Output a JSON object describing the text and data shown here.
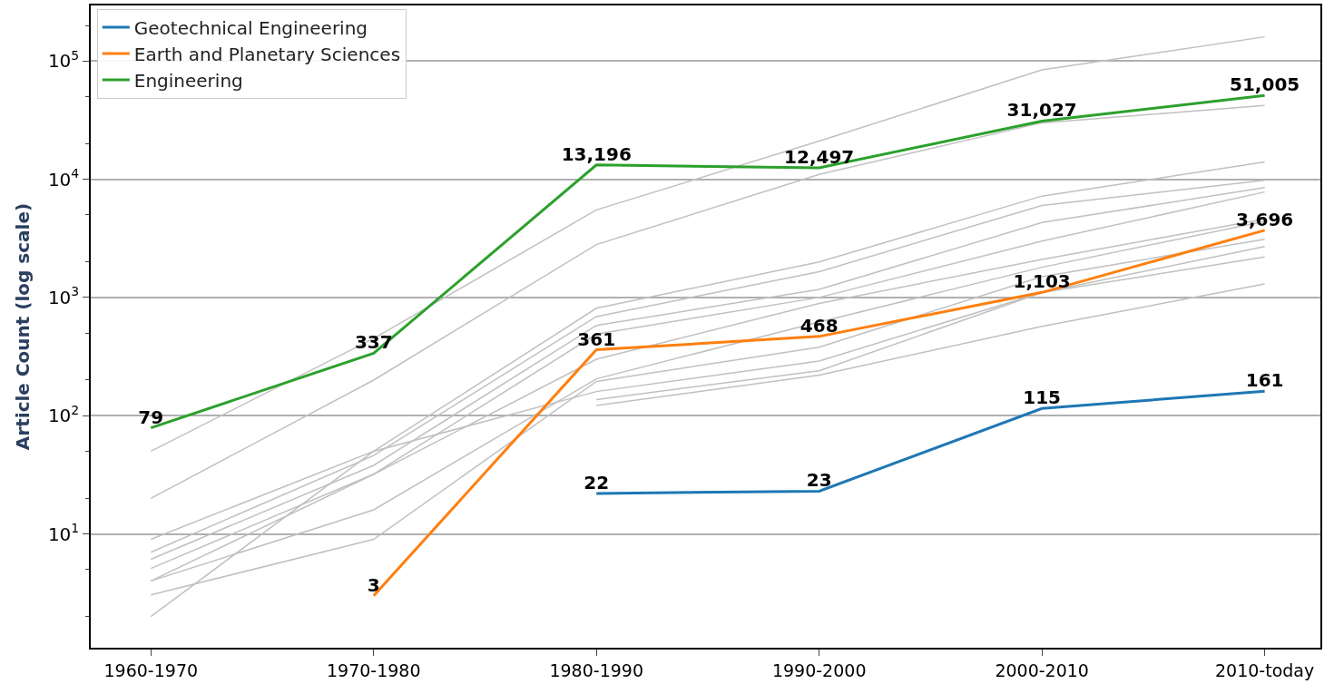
{
  "chart_data": {
    "type": "line",
    "ylabel": "Article Count (log scale)",
    "categories": [
      "1960-1970",
      "1970-1980",
      "1980-1990",
      "1990-2000",
      "2000-2010",
      "2010-today"
    ],
    "log": "y",
    "ylim": [
      1.09,
      295000
    ],
    "yticks": [
      {
        "value": 10,
        "label": "10$^{1}$"
      },
      {
        "value": 100,
        "label": "10$^{2}$"
      },
      {
        "value": 1000,
        "label": "10$^{3}$"
      },
      {
        "value": 10000,
        "label": "10$^{4}$"
      },
      {
        "value": 100000,
        "label": "10$^{5}$"
      }
    ],
    "grid": "y",
    "legend": "top left",
    "series": [
      {
        "color": "#c0c0c0",
        "values": [
          50,
          450,
          5500,
          21000,
          84000,
          160000
        ]
      },
      {
        "color": "#c0c0c0",
        "values": [
          20,
          200,
          2800,
          11000,
          30000,
          42000
        ]
      },
      {
        "color": "#c0c0c0",
        "values": [
          9,
          50,
          810,
          2000,
          7200,
          14000
        ]
      },
      {
        "color": "#c0c0c0",
        "values": [
          7,
          46,
          690,
          1650,
          6000,
          9800
        ]
      },
      {
        "color": "#c0c0c0",
        "values": [
          6.1,
          38,
          580,
          1170,
          4300,
          8500
        ]
      },
      {
        "color": "#c0c0c0",
        "values": [
          5.1,
          32,
          490,
          1000,
          3000,
          7800
        ]
      },
      {
        "color": "#c0c0c0",
        "values": [
          4,
          32,
          300,
          890,
          2100,
          4600
        ]
      },
      {
        "color": "#c0c0c0",
        "values": [
          4,
          16,
          205,
          620,
          1800,
          4400
        ]
      },
      {
        "color": "#c0c0c0",
        "values": [
          3.05,
          9,
          195,
          380,
          1500,
          3100
        ]
      },
      {
        "color": "#c0c0c0",
        "values": [
          2,
          50,
          160,
          290,
          1100,
          2700
        ]
      },
      {
        "color": "#c0c0c0",
        "values": [
          null,
          null,
          137,
          240,
          1100,
          2200
        ]
      },
      {
        "color": "#c0c0c0",
        "values": [
          null,
          null,
          122,
          220,
          570,
          1300
        ]
      },
      {
        "name": "Geotechnical Engineering",
        "color": "#1f77b4",
        "values": [
          null,
          null,
          22,
          23,
          115,
          161
        ],
        "value_labels": [
          null,
          null,
          "22",
          "23",
          "115",
          "161"
        ]
      },
      {
        "name": "Earth and Planetary Sciences",
        "color": "#ff7f0e",
        "values": [
          null,
          3,
          361,
          468,
          1103,
          3696
        ],
        "value_labels": [
          null,
          "3",
          "361",
          "468",
          "1,103",
          "3,696"
        ]
      },
      {
        "name": "Engineering",
        "color": "#2ca02c",
        "values": [
          79,
          337,
          13196,
          12497,
          31027,
          51005
        ],
        "value_labels": [
          "79",
          "337",
          "13,196",
          "12,497",
          "31,027",
          "51,005"
        ]
      }
    ]
  }
}
